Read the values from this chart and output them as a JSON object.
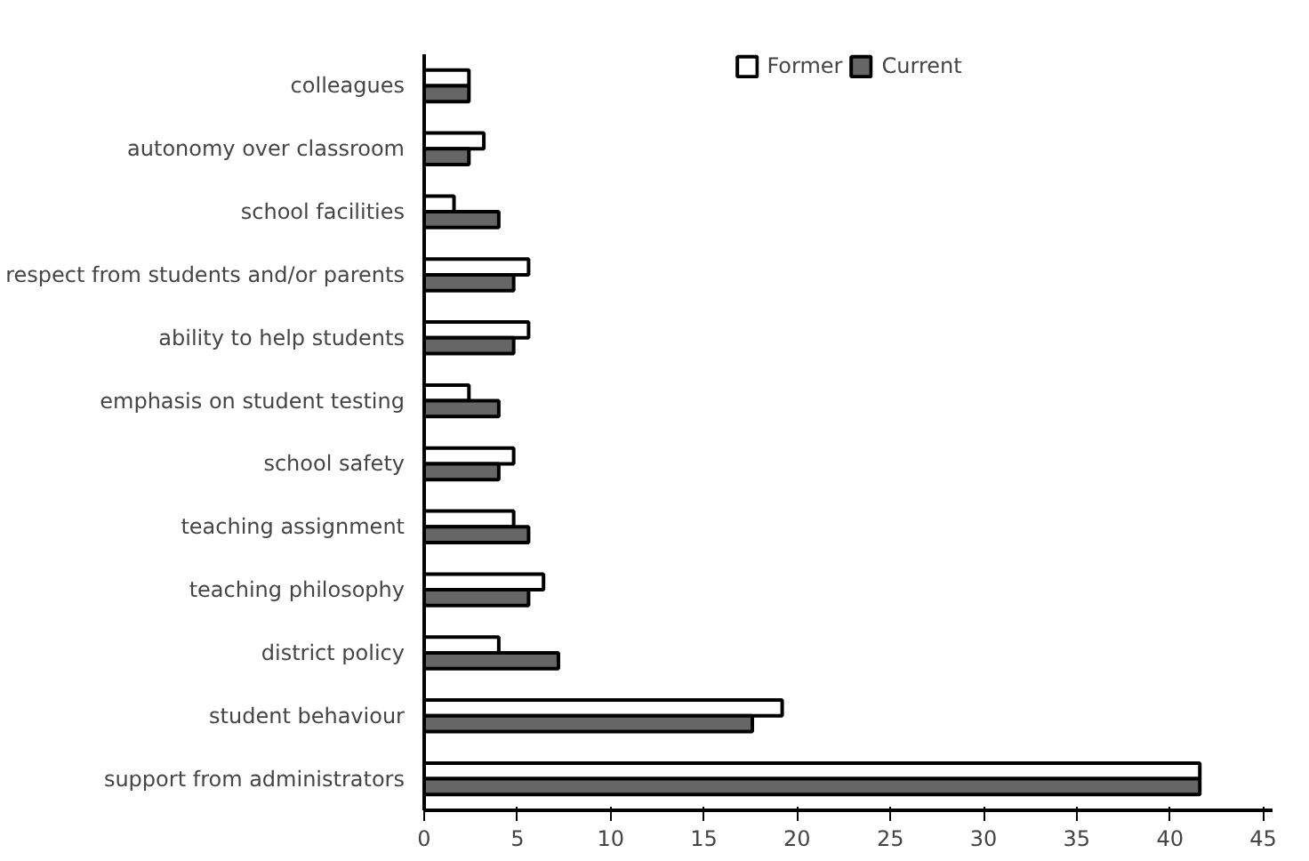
{
  "chart_data": {
    "type": "bar",
    "orientation": "horizontal",
    "categories": [
      "colleagues",
      "autonomy over classroom",
      "school facilities",
      "respect from students and/or parents",
      "ability to help students",
      "emphasis on student testing",
      "school safety",
      "teaching assignment",
      "teaching philosophy",
      "district policy",
      "student behaviour",
      "support from administrators"
    ],
    "series": [
      {
        "name": "Former",
        "color": "#ffffff",
        "values": [
          2.4,
          3.2,
          1.6,
          5.6,
          5.6,
          2.4,
          4.8,
          4.8,
          6.4,
          4.0,
          19.2,
          41.6
        ]
      },
      {
        "name": "Current",
        "color": "#666666",
        "values": [
          2.4,
          2.4,
          4.0,
          4.8,
          4.8,
          4.0,
          4.0,
          5.6,
          5.6,
          7.2,
          17.6,
          41.6
        ]
      }
    ],
    "xlim": [
      0,
      45.5
    ],
    "xticks": [
      0,
      5,
      10,
      15,
      20,
      25,
      30,
      35,
      40,
      45
    ],
    "grid": false,
    "legend": "top"
  }
}
